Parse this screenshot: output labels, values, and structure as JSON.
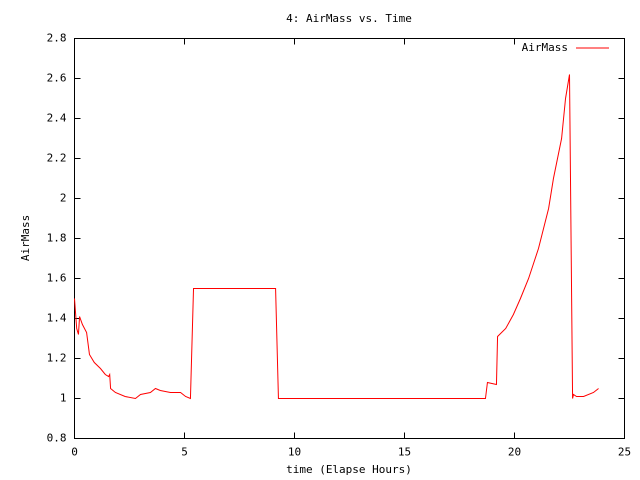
{
  "chart_data": {
    "type": "line",
    "title": "4: AirMass vs. Time",
    "xlabel": "time (Elapse Hours)",
    "ylabel": "AirMass",
    "x": [
      0,
      0.1,
      0.18,
      0.23,
      0.36,
      0.55,
      0.68,
      0.9,
      1.18,
      1.4,
      1.55,
      1.6,
      1.64,
      1.86,
      2.3,
      2.77,
      3.0,
      3.45,
      3.68,
      3.9,
      4.36,
      4.82,
      5.05,
      5.27,
      5.41,
      9.14,
      9.27,
      18.68,
      18.77,
      19.18,
      19.23,
      19.6,
      19.95,
      20.27,
      20.64,
      21.09,
      21.55,
      21.77,
      22.14,
      22.32,
      22.5,
      22.64,
      22.68,
      22.82,
      23.14,
      23.59,
      23.82
    ],
    "series": [
      {
        "name": "AirMass",
        "color": "#ff0000",
        "values": [
          1.5,
          1.35,
          1.32,
          1.41,
          1.37,
          1.33,
          1.22,
          1.18,
          1.15,
          1.12,
          1.11,
          1.12,
          1.05,
          1.03,
          1.01,
          1.0,
          1.02,
          1.03,
          1.05,
          1.04,
          1.03,
          1.03,
          1.01,
          1.0,
          1.55,
          1.55,
          1.0,
          1.0,
          1.08,
          1.07,
          1.31,
          1.35,
          1.42,
          1.5,
          1.6,
          1.75,
          1.95,
          2.1,
          2.3,
          2.5,
          2.62,
          1.0,
          1.02,
          1.01,
          1.01,
          1.03,
          1.05
        ]
      }
    ],
    "xlim": [
      0,
      25
    ],
    "xticks": [
      0,
      5,
      10,
      15,
      20,
      25
    ],
    "ylim": [
      0.8,
      2.8
    ],
    "yticks": [
      0.8,
      1,
      1.2,
      1.4,
      1.6,
      1.8,
      2,
      2.2,
      2.4,
      2.6,
      2.8
    ],
    "legend": "upper right"
  }
}
